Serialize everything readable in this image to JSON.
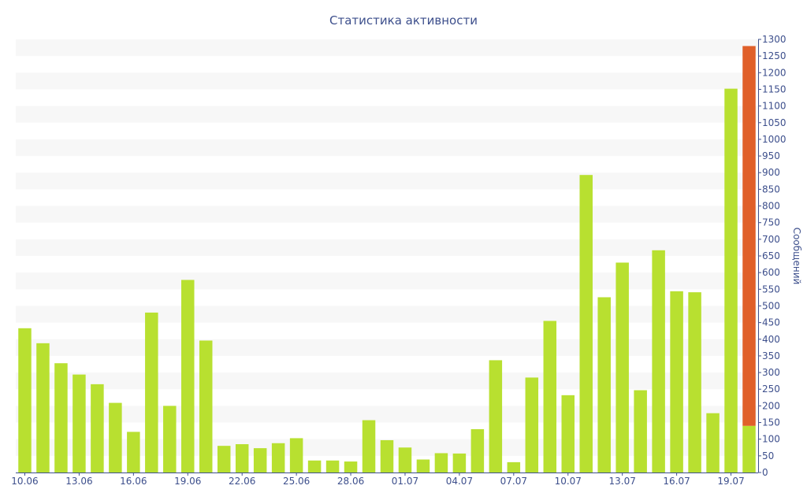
{
  "chart_data": {
    "type": "bar",
    "title": "Статистика активности",
    "xlabel": "",
    "ylabel": "Сообщений",
    "ylim": [
      0,
      1300
    ],
    "y_ticks": [
      0,
      50,
      100,
      150,
      200,
      250,
      300,
      350,
      400,
      450,
      500,
      550,
      600,
      650,
      700,
      750,
      800,
      850,
      900,
      950,
      1000,
      1050,
      1100,
      1150,
      1200,
      1250,
      1300
    ],
    "y_axis_position": "right",
    "grid": "horizontal alternating bands",
    "x": [
      "10.06",
      "11.06",
      "12.06",
      "13.06",
      "14.06",
      "15.06",
      "16.06",
      "17.06",
      "18.06",
      "19.06",
      "20.06",
      "21.06",
      "22.06",
      "23.06",
      "24.06",
      "25.06",
      "26.06",
      "27.06",
      "28.06",
      "29.06",
      "30.06",
      "01.07",
      "02.07",
      "03.07",
      "04.07",
      "05.07",
      "06.07",
      "07.07",
      "08.07",
      "09.07",
      "10.07",
      "11.07",
      "12.07",
      "13.07",
      "14.07",
      "15.07",
      "16.07",
      "17.07",
      "18.07",
      "19.07",
      "20.07"
    ],
    "x_tick_labels": [
      "10.06",
      "13.06",
      "16.06",
      "19.06",
      "22.06",
      "25.06",
      "28.06",
      "01.07",
      "04.07",
      "07.07",
      "10.07",
      "13.07",
      "16.07",
      "19.07"
    ],
    "series": [
      {
        "color": "#b8e030",
        "values": [
          433,
          388,
          328,
          294,
          265,
          209,
          122,
          480,
          200,
          578,
          396,
          80,
          85,
          73,
          88,
          103,
          36,
          36,
          33,
          157,
          97,
          75,
          39,
          58,
          57,
          130,
          337,
          31,
          285,
          455,
          232,
          893,
          526,
          630,
          247,
          667,
          544,
          541,
          178,
          1152,
          140
        ]
      },
      {
        "color": "#e0602a",
        "values": [
          0,
          0,
          0,
          0,
          0,
          0,
          0,
          0,
          0,
          0,
          0,
          0,
          0,
          0,
          0,
          0,
          0,
          0,
          0,
          0,
          0,
          0,
          0,
          0,
          0,
          0,
          0,
          0,
          0,
          0,
          0,
          0,
          0,
          0,
          0,
          0,
          0,
          0,
          0,
          0,
          1140
        ]
      }
    ],
    "colors": {
      "text": "#3d4f8c",
      "band": "#f7f7f7",
      "axis": "#3d4f8c"
    }
  }
}
